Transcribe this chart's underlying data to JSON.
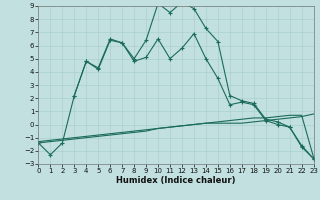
{
  "xlabel": "Humidex (Indice chaleur)",
  "bg_color": "#c2e0e0",
  "line_color": "#1a6b5a",
  "grid_color": "#aacfcf",
  "xlim": [
    0,
    23
  ],
  "ylim": [
    -3,
    9
  ],
  "xticks": [
    0,
    1,
    2,
    3,
    4,
    5,
    6,
    7,
    8,
    9,
    10,
    11,
    12,
    13,
    14,
    15,
    16,
    17,
    18,
    19,
    20,
    21,
    22,
    23
  ],
  "yticks": [
    -3,
    -2,
    -1,
    0,
    1,
    2,
    3,
    4,
    5,
    6,
    7,
    8,
    9
  ],
  "line1_x": [
    0,
    1,
    2,
    3,
    4,
    5,
    6,
    7,
    8,
    9,
    10,
    11,
    12,
    13,
    14,
    15,
    16,
    17,
    18,
    19,
    20,
    21,
    22,
    23
  ],
  "line1_y": [
    -1.4,
    -2.3,
    -1.4,
    2.2,
    4.8,
    4.3,
    6.5,
    6.2,
    5.0,
    6.4,
    9.2,
    8.5,
    9.3,
    8.8,
    7.3,
    6.3,
    2.2,
    1.8,
    1.6,
    0.4,
    0.2,
    -0.2,
    -1.7,
    -2.6
  ],
  "line2_x": [
    3,
    4,
    5,
    6,
    7,
    8,
    9,
    10,
    11,
    12,
    13,
    14,
    15,
    16,
    17,
    18,
    19,
    20,
    21,
    22,
    23
  ],
  "line2_y": [
    2.2,
    4.8,
    4.2,
    6.4,
    6.2,
    4.8,
    5.1,
    6.5,
    5.0,
    5.8,
    6.9,
    5.0,
    3.5,
    1.5,
    1.7,
    1.5,
    0.3,
    -0.0,
    -0.2,
    -1.6,
    -2.6
  ],
  "line3_x": [
    0,
    1,
    2,
    3,
    4,
    5,
    6,
    7,
    8,
    9,
    10,
    11,
    12,
    13,
    14,
    15,
    16,
    17,
    18,
    19,
    20,
    21,
    22,
    23
  ],
  "line3_y": [
    -1.3,
    -1.2,
    -1.1,
    -1.0,
    -0.9,
    -0.8,
    -0.7,
    -0.6,
    -0.5,
    -0.4,
    -0.3,
    -0.2,
    -0.1,
    0.0,
    0.1,
    0.2,
    0.3,
    0.4,
    0.5,
    0.5,
    0.6,
    0.7,
    0.7,
    -2.5
  ],
  "line4_x": [
    0,
    1,
    2,
    3,
    4,
    5,
    6,
    7,
    8,
    9,
    10,
    11,
    12,
    13,
    14,
    15,
    16,
    17,
    18,
    19,
    20,
    21,
    22,
    23
  ],
  "line4_y": [
    -1.4,
    -1.3,
    -1.2,
    -1.1,
    -1.0,
    -0.9,
    -0.8,
    -0.7,
    -0.6,
    -0.5,
    -0.3,
    -0.2,
    -0.1,
    0.0,
    0.1,
    0.1,
    0.1,
    0.1,
    0.2,
    0.3,
    0.4,
    0.5,
    0.6,
    0.8
  ]
}
